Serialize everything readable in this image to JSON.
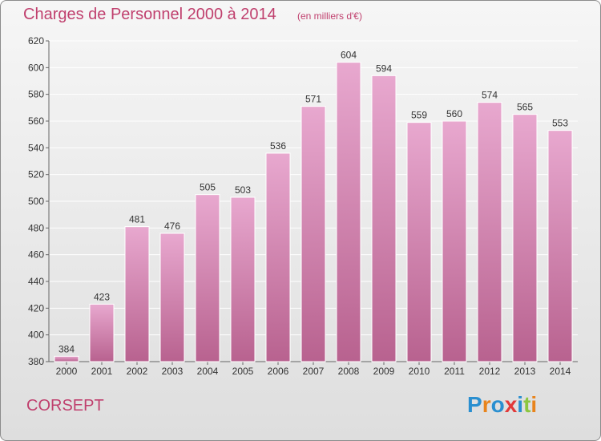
{
  "title": "Charges de Personnel 2000 à 2014",
  "subtitle": "(en milliers d'€)",
  "commune": "CORSEPT",
  "logo": {
    "text": "Proxiti",
    "colors": [
      "#2a8fd0",
      "#e8841c",
      "#2a8fd0",
      "#e23a3a",
      "#2a8fd0",
      "#8cc63f",
      "#e8841c"
    ]
  },
  "colors": {
    "bar_top": "#e8a8cf",
    "bar_bottom": "#b8628f",
    "text": "#c0406e",
    "grid": "#ffffff"
  },
  "chart_data": {
    "type": "bar",
    "categories": [
      "2000",
      "2001",
      "2002",
      "2003",
      "2004",
      "2005",
      "2006",
      "2007",
      "2008",
      "2009",
      "2010",
      "2011",
      "2012",
      "2013",
      "2014"
    ],
    "values": [
      384,
      423,
      481,
      476,
      505,
      503,
      536,
      571,
      604,
      594,
      559,
      560,
      574,
      565,
      553
    ],
    "ylim": [
      380,
      620
    ],
    "yticks": [
      380,
      400,
      420,
      440,
      460,
      480,
      500,
      520,
      540,
      560,
      580,
      600,
      620
    ],
    "grid": true
  }
}
